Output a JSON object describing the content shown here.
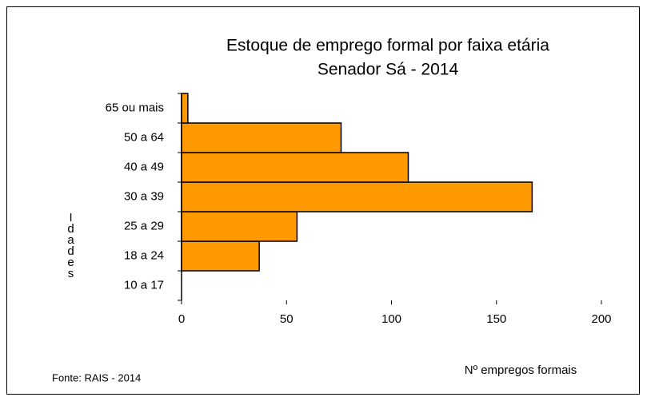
{
  "chart_data": {
    "type": "hbar",
    "title": "Estoque de emprego formal por faixa etária",
    "subtitle": "Senador Sá - 2014",
    "ylabel": "Idades",
    "xlabel": "Nº empregos formais",
    "source": "Fonte: RAIS - 2014",
    "categories": [
      "10 a 17",
      "18 a 24",
      "25 a 29",
      "30 a 39",
      "40 a 49",
      "50 a 64",
      "65 ou mais"
    ],
    "values": [
      0,
      37,
      55,
      167,
      108,
      76,
      3
    ],
    "color": "#ff9900",
    "xlim": [
      0,
      200
    ],
    "xticks": [
      0,
      50,
      100,
      150,
      200
    ],
    "grid": false
  }
}
